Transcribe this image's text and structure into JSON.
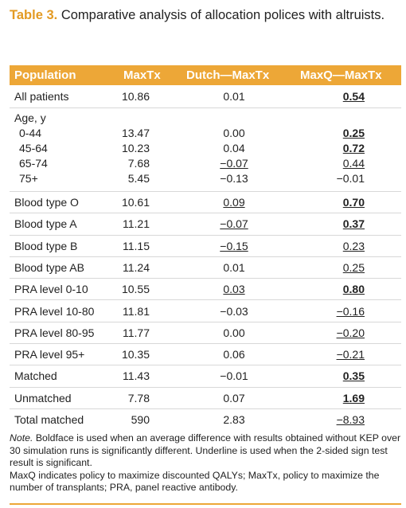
{
  "title": {
    "label": "Table 3.",
    "text": "Comparative analysis of allocation polices with altruists."
  },
  "table": {
    "header": [
      "Population",
      "MaxTx",
      "Dutch—MaxTx",
      "MaxQ—MaxTx"
    ],
    "rows": [
      {
        "cells": [
          "All patients",
          "10.86",
          {
            "text": "0.01",
            "bold": false,
            "underline": false
          },
          {
            "text": "0.54",
            "bold": true,
            "underline": true
          }
        ]
      },
      {
        "cells": [
          "Age, y"
        ],
        "subrows": [
          [
            "0-44",
            "13.47",
            {
              "text": "0.00",
              "bold": false,
              "underline": false
            },
            {
              "text": "0.25",
              "bold": true,
              "underline": true
            }
          ],
          [
            "45-64",
            "10.23",
            {
              "text": "0.04",
              "bold": false,
              "underline": false
            },
            {
              "text": "0.72",
              "bold": true,
              "underline": true
            }
          ],
          [
            "65-74",
            "7.68",
            {
              "text": "−0.07",
              "bold": false,
              "underline": true
            },
            {
              "text": "0.44",
              "bold": false,
              "underline": true
            }
          ],
          [
            "75+",
            "5.45",
            {
              "text": "−0.13",
              "bold": false,
              "underline": false
            },
            {
              "text": "−0.01",
              "bold": false,
              "underline": false
            }
          ]
        ]
      },
      {
        "cells": [
          "Blood type O",
          "10.61",
          {
            "text": "0.09",
            "bold": false,
            "underline": true
          },
          {
            "text": "0.70",
            "bold": true,
            "underline": true
          }
        ]
      },
      {
        "cells": [
          "Blood type A",
          "11.21",
          {
            "text": "−0.07",
            "bold": false,
            "underline": true
          },
          {
            "text": "0.37",
            "bold": true,
            "underline": true
          }
        ]
      },
      {
        "cells": [
          "Blood type B",
          "11.15",
          {
            "text": "−0.15",
            "bold": false,
            "underline": true
          },
          {
            "text": "0.23",
            "bold": false,
            "underline": true
          }
        ]
      },
      {
        "cells": [
          "Blood type AB",
          "11.24",
          {
            "text": "0.01",
            "bold": false,
            "underline": false
          },
          {
            "text": "0.25",
            "bold": false,
            "underline": true
          }
        ]
      },
      {
        "cells": [
          "PRA level 0-10",
          "10.55",
          {
            "text": "0.03",
            "bold": false,
            "underline": true
          },
          {
            "text": "0.80",
            "bold": true,
            "underline": true
          }
        ]
      },
      {
        "cells": [
          "PRA level 10-80",
          "11.81",
          {
            "text": "−0.03",
            "bold": false,
            "underline": false
          },
          {
            "text": "−0.16",
            "bold": false,
            "underline": true
          }
        ]
      },
      {
        "cells": [
          "PRA level 80-95",
          "11.77",
          {
            "text": "0.00",
            "bold": false,
            "underline": false
          },
          {
            "text": "−0.20",
            "bold": false,
            "underline": true
          }
        ]
      },
      {
        "cells": [
          "PRA level 95+",
          "10.35",
          {
            "text": "0.06",
            "bold": false,
            "underline": false
          },
          {
            "text": "−0.21",
            "bold": false,
            "underline": true
          }
        ]
      },
      {
        "cells": [
          "Matched",
          "11.43",
          {
            "text": "−0.01",
            "bold": false,
            "underline": false
          },
          {
            "text": "0.35",
            "bold": true,
            "underline": true
          }
        ]
      },
      {
        "cells": [
          "Unmatched",
          "7.78",
          {
            "text": "0.07",
            "bold": false,
            "underline": false
          },
          {
            "text": "1.69",
            "bold": true,
            "underline": true
          }
        ]
      },
      {
        "cells": [
          "Total matched",
          "590",
          {
            "text": "2.83",
            "bold": false,
            "underline": false
          },
          {
            "text": "−8.93",
            "bold": false,
            "underline": true
          }
        ]
      }
    ]
  },
  "note": {
    "lead": "Note.",
    "text": "Boldface is used when an average difference with results obtained without KEP over 30 simulation runs is significantly different. Underline is used when the 2-sided sign test result is significant."
  },
  "abbreviations": "MaxQ indicates policy to maximize discounted QALYs; MaxTx, policy to maximize the number of transplants; PRA, panel reactive antibody."
}
